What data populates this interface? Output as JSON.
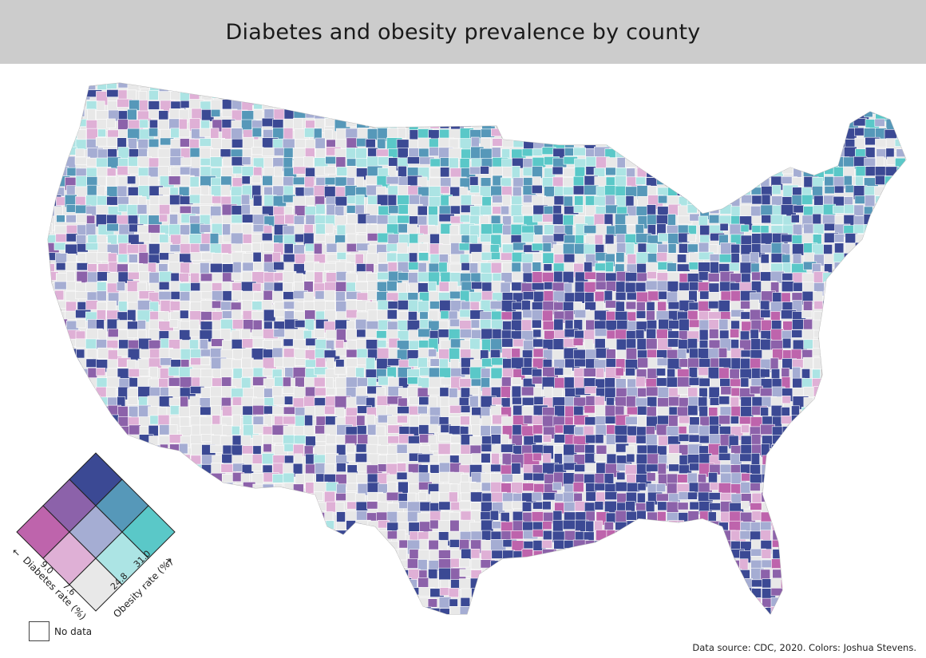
{
  "title": "Diabetes and obesity prevalence by county",
  "source": "Data source: CDC, 2020. Colors: Joshua Stevens.",
  "legend": {
    "diabetes_axis_label": "Diabetes rate (%)",
    "obesity_axis_label": "Obesity rate (%)",
    "diabetes_ticks": [
      "9.0",
      "7.6"
    ],
    "obesity_ticks": [
      "24.8",
      "31.0"
    ],
    "no_data_label": "No data",
    "palette": {
      "low_low": "#e8e8e8",
      "low_mid": "#ace4e4",
      "low_high": "#5ac8c8",
      "mid_low": "#dfb0d6",
      "mid_mid": "#a5add3",
      "mid_high": "#5698b9",
      "high_low": "#be64ac",
      "high_mid": "#8c62aa",
      "high_high": "#3b4994"
    }
  },
  "map": {
    "region": "Contiguous United States, counties",
    "nodata_color": "#ffffff",
    "border_color": "#ffffff"
  }
}
